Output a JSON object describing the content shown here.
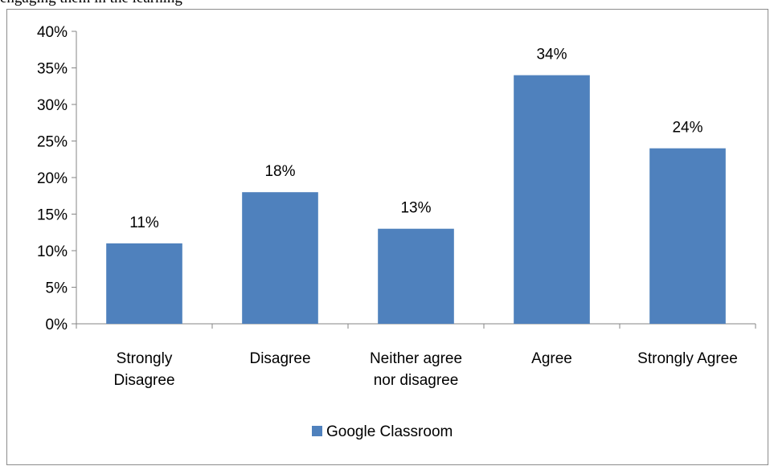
{
  "caption": "engaging them in the learning",
  "chart_data": {
    "type": "bar",
    "categories": [
      [
        "Strongly",
        "Disagree"
      ],
      [
        "Disagree"
      ],
      [
        "Neither agree",
        "nor disagree"
      ],
      [
        "Agree"
      ],
      [
        "Strongly Agree"
      ]
    ],
    "series": [
      {
        "name": "Google Classroom",
        "values": [
          11,
          18,
          13,
          34,
          24
        ],
        "labels": [
          "11%",
          "18%",
          "13%",
          "34%",
          "24%"
        ],
        "color": "#4f81bd"
      }
    ],
    "y_ticks": [
      "0%",
      "5%",
      "10%",
      "15%",
      "20%",
      "25%",
      "30%",
      "35%",
      "40%"
    ],
    "ylim": [
      0,
      40
    ],
    "grid": false,
    "legend_position": "bottom"
  }
}
